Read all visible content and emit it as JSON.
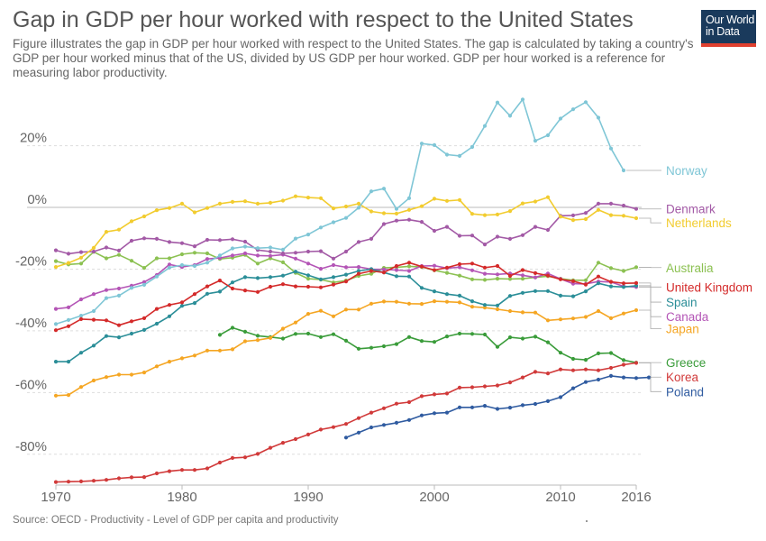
{
  "title": "Gap in GDP per hour worked with respect to the United States",
  "subtitle": "Figure illustrates the gap in GDP per hour worked with respect to the United States. The gap is calculated by taking a country's GDP per hour worked minus that of the US, divided by US GDP per hour worked. GDP per hour worked is a reference for measuring labor productivity.",
  "logo": {
    "line1": "Our World",
    "line2": "in Data"
  },
  "source": "Source: OECD - Productivity - Level of GDP per capita and productivity",
  "chart_data": {
    "type": "line",
    "xlim": [
      1970,
      2016
    ],
    "ylim": [
      -90,
      38
    ],
    "x_ticks": [
      {
        "value": 1970,
        "label": "1970"
      },
      {
        "value": 1980,
        "label": "1980"
      },
      {
        "value": 1990,
        "label": "1990"
      },
      {
        "value": 2000,
        "label": "2000"
      },
      {
        "value": 2010,
        "label": "2010"
      },
      {
        "value": 2016,
        "label": "2016"
      }
    ],
    "y_ticks": [
      {
        "value": 20,
        "label": "20%"
      },
      {
        "value": 0,
        "label": "0%"
      },
      {
        "value": -20,
        "label": "-20%"
      },
      {
        "value": -40,
        "label": "-40%"
      },
      {
        "value": -60,
        "label": "-60%"
      },
      {
        "value": -80,
        "label": "-80%"
      }
    ],
    "grid": true,
    "series": [
      {
        "name": "Australia",
        "color": "#8cc152",
        "start": 1970,
        "values": [
          -17.4,
          -18.5,
          -18.2,
          -14.4,
          -16.5,
          -15.4,
          -17.3,
          -19.6,
          -16.5,
          -16.5,
          -15.2,
          -14.7,
          -14.9,
          -16.7,
          -16.3,
          -15.4,
          -18.2,
          -16.5,
          -17.8,
          -21.2,
          -23.1,
          -23.4,
          -24.3,
          -23.7,
          -22.2,
          -21.5,
          -19.6,
          -19.4,
          -19.1,
          -19.3,
          -20.4,
          -21.2,
          -22.1,
          -23.3,
          -23.5,
          -23.1,
          -23.2,
          -23.1,
          -22.7,
          -22.3,
          -23.1,
          -23.6,
          -23.6,
          -17.9,
          -19.7,
          -20.6,
          -19.4
        ],
        "label_y": -19.5
      },
      {
        "name": "Canada",
        "color": "#b455b6",
        "start": 1970,
        "values": [
          -32.9,
          -32.4,
          -29.8,
          -28.1,
          -26.8,
          -26.3,
          -25.4,
          -24.2,
          -21.9,
          -18.5,
          -19.3,
          -18.7,
          -16.7,
          -16.4,
          -15.6,
          -14.9,
          -15.6,
          -15.7,
          -15.3,
          -16.6,
          -18.2,
          -19.9,
          -18.7,
          -19.4,
          -19.3,
          -20.0,
          -20.1,
          -20.3,
          -20.6,
          -19.0,
          -18.9,
          -19.7,
          -19.4,
          -20.4,
          -21.5,
          -21.7,
          -21.4,
          -22.0,
          -22.7,
          -21.4,
          -23.2,
          -24.7,
          -24.8,
          -24.0,
          -24.2,
          -25.6,
          -25.8
        ],
        "label_y": -35.4
      },
      {
        "name": "Denmark",
        "color": "#a35aa6",
        "start": 1970,
        "values": [
          -13.9,
          -15.0,
          -14.5,
          -14.3,
          -13.0,
          -14.0,
          -10.8,
          -10.0,
          -10.2,
          -11.2,
          -11.6,
          -12.6,
          -10.5,
          -10.6,
          -10.3,
          -11.1,
          -13.8,
          -14.3,
          -14.9,
          -14.7,
          -14.3,
          -14.2,
          -16.6,
          -14.3,
          -11.2,
          -10.2,
          -5.4,
          -4.3,
          -4.0,
          -4.7,
          -7.6,
          -6.3,
          -9.2,
          -9.1,
          -12.0,
          -9.5,
          -10.2,
          -9.0,
          -6.3,
          -7.3,
          -2.7,
          -2.6,
          -1.8,
          1.2,
          1.2,
          0.6,
          -0.5
        ],
        "label_y": -0.5
      },
      {
        "name": "Greece",
        "color": "#3a9c3a",
        "start": 1983,
        "values": [
          -41.3,
          -39.0,
          -40.3,
          -41.6,
          -42.0,
          -42.5,
          -41.0,
          -40.9,
          -42.0,
          -41.1,
          -43.2,
          -45.8,
          -45.5,
          -45.0,
          -44.3,
          -42.0,
          -43.3,
          -43.6,
          -41.8,
          -40.9,
          -41.0,
          -41.2,
          -45.2,
          -42.1,
          -42.5,
          -41.9,
          -43.7,
          -47.1,
          -49.1,
          -49.4,
          -47.3,
          -47.2,
          -49.5,
          -50.3
        ],
        "label_y": -50.3
      },
      {
        "name": "Japan",
        "color": "#f5a623",
        "start": 1970,
        "values": [
          -61.0,
          -60.8,
          -58.2,
          -56.1,
          -55.0,
          -54.2,
          -54.2,
          -53.5,
          -51.5,
          -50.0,
          -48.9,
          -48.0,
          -46.4,
          -46.4,
          -46.0,
          -43.4,
          -43.0,
          -42.3,
          -39.3,
          -37.3,
          -34.5,
          -33.5,
          -35.3,
          -33.1,
          -33.1,
          -31.2,
          -30.5,
          -30.6,
          -31.2,
          -31.3,
          -30.4,
          -30.6,
          -30.8,
          -32.2,
          -32.5,
          -33.0,
          -33.6,
          -34.0,
          -34.1,
          -36.6,
          -36.3,
          -36.0,
          -35.5,
          -33.6,
          -35.9,
          -34.4,
          -33.3
        ],
        "label_y": -39.3
      },
      {
        "name": "Korea",
        "color": "#d13a3a",
        "start": 1970,
        "values": [
          -89.0,
          -88.9,
          -88.8,
          -88.6,
          -88.3,
          -87.8,
          -87.5,
          -87.4,
          -86.2,
          -85.5,
          -85.1,
          -85.1,
          -84.6,
          -82.7,
          -81.2,
          -81.0,
          -79.9,
          -77.9,
          -76.3,
          -75.1,
          -73.6,
          -72.0,
          -71.2,
          -70.2,
          -68.3,
          -66.5,
          -65.1,
          -63.6,
          -63.1,
          -61.2,
          -60.6,
          -60.3,
          -58.4,
          -58.3,
          -58.0,
          -57.7,
          -56.7,
          -55.1,
          -53.3,
          -53.8,
          -52.5,
          -52.8,
          -52.5,
          -52.8,
          -52.0,
          -51.0,
          -50.4
        ],
        "label_y": -55.0
      },
      {
        "name": "Netherlands",
        "color": "#f2cc2f",
        "start": 1970,
        "values": [
          -19.3,
          -18.0,
          -16.3,
          -13.1,
          -7.9,
          -7.2,
          -4.5,
          -2.9,
          -0.9,
          -0.2,
          1.2,
          -1.6,
          -0.2,
          1.2,
          1.8,
          2.0,
          1.2,
          1.5,
          2.2,
          3.6,
          3.2,
          3.0,
          -0.3,
          0.3,
          1.2,
          -1.3,
          -1.9,
          -2.0,
          -0.8,
          0.4,
          2.8,
          2.1,
          2.4,
          -2.1,
          -2.5,
          -2.3,
          -1.2,
          1.3,
          1.9,
          3.3,
          -3.0,
          -4.1,
          -3.8,
          -0.8,
          -2.5,
          -2.7,
          -3.5
        ],
        "label_y": -5.0
      },
      {
        "name": "Norway",
        "color": "#7fc6d6",
        "start": 1970,
        "values": [
          -37.8,
          -36.5,
          -35.1,
          -33.6,
          -29.4,
          -28.6,
          -26.1,
          -25.1,
          -22.4,
          -19.5,
          -18.7,
          -19.0,
          -17.9,
          -15.6,
          -13.3,
          -12.7,
          -13.2,
          -13.0,
          -13.7,
          -10.1,
          -8.8,
          -6.5,
          -4.8,
          -3.4,
          -0.1,
          5.2,
          6.1,
          -0.5,
          3.0,
          20.7,
          20.2,
          17.1,
          16.7,
          19.6,
          26.4,
          34.0,
          29.7,
          35.0,
          21.6,
          23.4,
          28.8,
          31.8,
          34.1,
          29.1,
          19.1,
          12.0
        ],
        "label_y": 12.0
      },
      {
        "name": "Poland",
        "color": "#2f5ba0",
        "start": 1993,
        "values": [
          -74.6,
          -73.0,
          -71.3,
          -70.5,
          -69.8,
          -68.9,
          -67.4,
          -66.7,
          -66.5,
          -64.8,
          -64.8,
          -64.3,
          -65.3,
          -64.9,
          -64.1,
          -63.7,
          -62.8,
          -61.5,
          -58.6,
          -56.6,
          -55.8,
          -54.6,
          -55.1,
          -55.3,
          -55.1
        ],
        "label_y": -59.7
      },
      {
        "name": "Spain",
        "color": "#2b8e98",
        "start": 1970,
        "values": [
          -50.0,
          -50.0,
          -47.1,
          -44.8,
          -41.7,
          -42.1,
          -40.9,
          -39.7,
          -37.7,
          -35.3,
          -31.9,
          -31.0,
          -28.0,
          -27.3,
          -24.3,
          -22.6,
          -22.9,
          -22.6,
          -22.1,
          -20.8,
          -22.0,
          -23.3,
          -22.6,
          -21.8,
          -20.6,
          -20.0,
          -21.1,
          -22.3,
          -22.4,
          -26.1,
          -27.2,
          -28.1,
          -28.6,
          -30.4,
          -31.6,
          -31.8,
          -28.7,
          -27.7,
          -27.1,
          -27.1,
          -28.6,
          -28.8,
          -27.2,
          -24.6,
          -25.6,
          -25.8,
          -25.4
        ],
        "label_y": -30.7
      },
      {
        "name": "United Kingdom",
        "color": "#d42a2a",
        "start": 1970,
        "values": [
          -39.8,
          -38.5,
          -36.2,
          -36.4,
          -36.6,
          -38.2,
          -36.9,
          -35.9,
          -32.9,
          -31.6,
          -30.8,
          -28.1,
          -25.6,
          -23.7,
          -26.3,
          -26.9,
          -27.4,
          -25.7,
          -24.9,
          -25.6,
          -25.7,
          -25.9,
          -25.0,
          -24.0,
          -21.5,
          -20.6,
          -21.1,
          -19.0,
          -17.9,
          -19.2,
          -20.3,
          -19.5,
          -18.4,
          -18.2,
          -19.5,
          -19.0,
          -22.2,
          -20.3,
          -21.3,
          -22.1,
          -23.3,
          -23.9,
          -25.0,
          -22.4,
          -24.1,
          -24.6,
          -24.5
        ],
        "label_y": -25.8
      }
    ]
  }
}
